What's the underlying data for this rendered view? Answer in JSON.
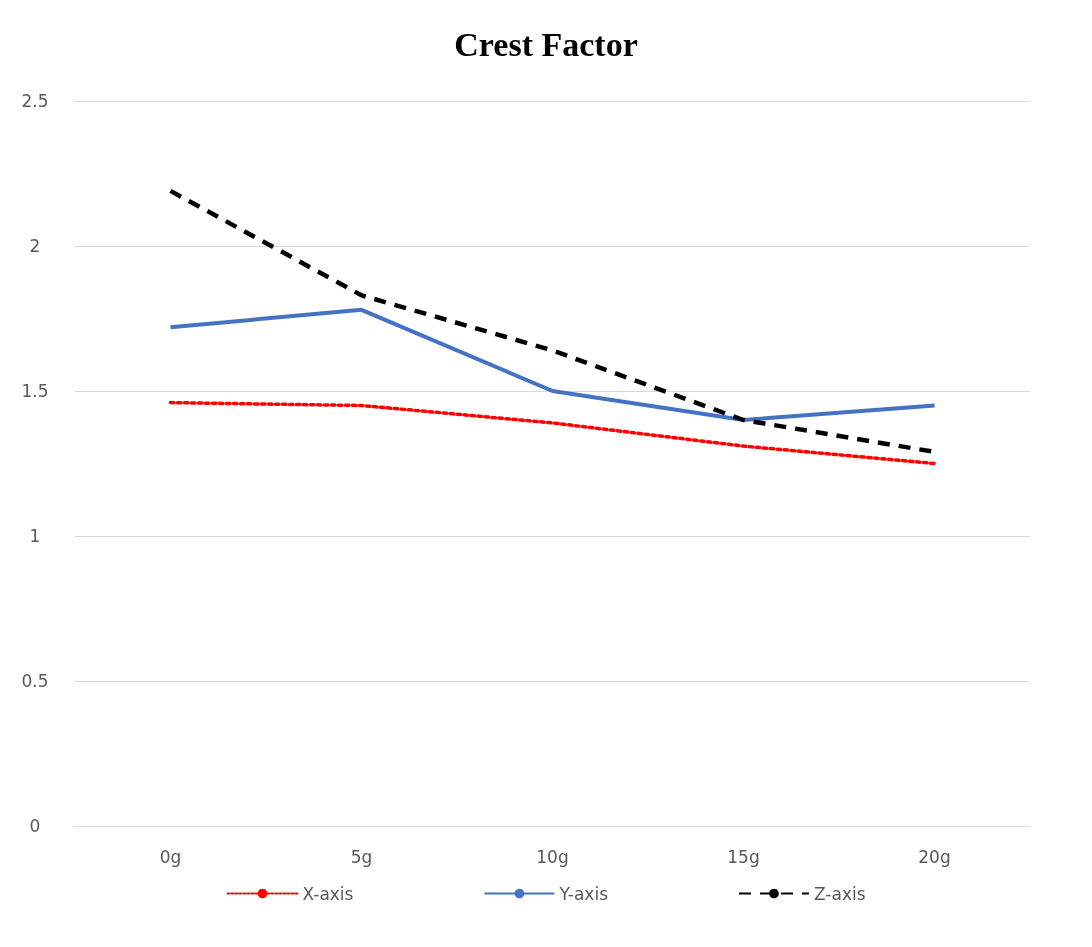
{
  "chart_data": {
    "type": "line",
    "title": "Crest Factor",
    "categories": [
      "0g",
      "5g",
      "10g",
      "15g",
      "20g"
    ],
    "series": [
      {
        "name": "X-axis",
        "color": "#ff0000",
        "line_style": "dotted",
        "values": [
          1.46,
          1.45,
          1.39,
          1.31,
          1.25
        ]
      },
      {
        "name": "Y-axis",
        "color": "#4472c4",
        "line_style": "solid",
        "values": [
          1.72,
          1.78,
          1.5,
          1.4,
          1.45
        ]
      },
      {
        "name": "Z-axis",
        "color": "#000000",
        "line_style": "dashed",
        "values": [
          2.19,
          1.83,
          1.64,
          1.4,
          1.29
        ]
      }
    ],
    "ylim": [
      0,
      2.5
    ],
    "yticks": [
      0,
      0.5,
      1,
      1.5,
      2,
      2.5
    ],
    "grid": "y",
    "legend": "bottom",
    "marker": "none"
  }
}
